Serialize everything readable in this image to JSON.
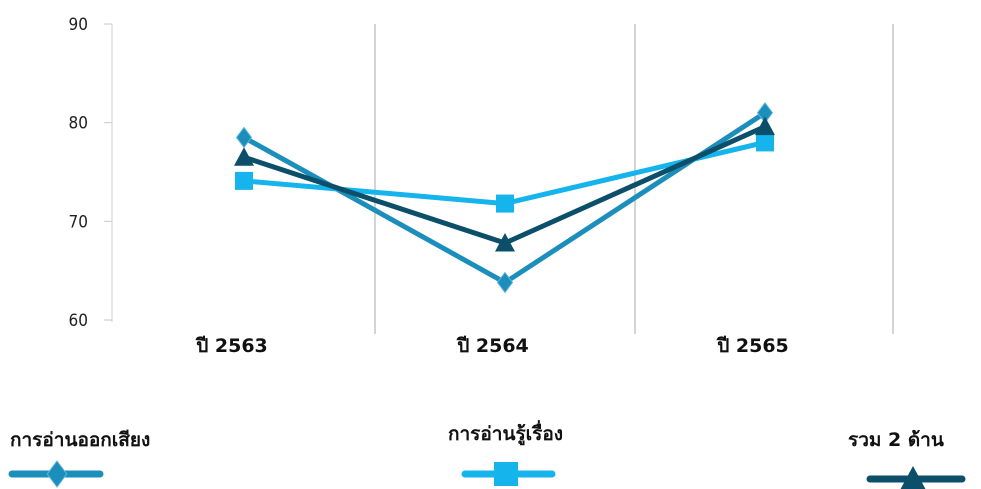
{
  "chart_data": {
    "type": "line",
    "categories": [
      "ปี 2563",
      "ปี 2564",
      "ปี 2565"
    ],
    "ylim": [
      60,
      90
    ],
    "yticks": [
      60,
      70,
      80,
      90
    ],
    "grid": "vertical",
    "legend_position": "bottom",
    "series": [
      {
        "name": "การอ่านออกเสียง",
        "values": [
          78.5,
          63.8,
          81.0
        ],
        "color": "#1C8EBB",
        "marker": "diamond"
      },
      {
        "name": "การอ่านรู้เรื่อง",
        "values": [
          74.1,
          71.8,
          78.0
        ],
        "color": "#15B4EC",
        "marker": "square"
      },
      {
        "name": "รวม 2 ด้าน",
        "values": [
          76.5,
          67.8,
          79.6
        ],
        "color": "#0C4F6A",
        "marker": "triangle"
      }
    ]
  }
}
